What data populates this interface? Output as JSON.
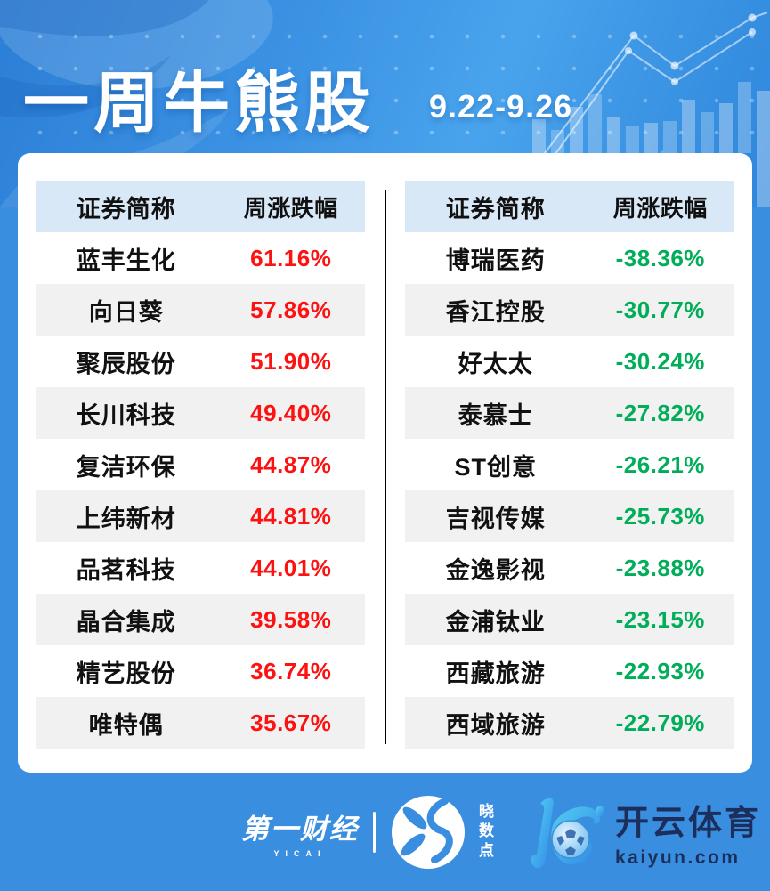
{
  "banner": {
    "title": "一周牛熊股",
    "date_range": "9.22-9.26"
  },
  "tables": {
    "header": [
      "证券简称",
      "周涨跌幅"
    ],
    "gainers": [
      {
        "name": "蓝丰生化",
        "change": "61.16%"
      },
      {
        "name": "向日葵",
        "change": "57.86%"
      },
      {
        "name": "聚辰股份",
        "change": "51.90%"
      },
      {
        "name": "长川科技",
        "change": "49.40%"
      },
      {
        "name": "复洁环保",
        "change": "44.87%"
      },
      {
        "name": "上纬新材",
        "change": "44.81%"
      },
      {
        "name": "品茗科技",
        "change": "44.01%"
      },
      {
        "name": "晶合集成",
        "change": "39.58%"
      },
      {
        "name": "精艺股份",
        "change": "36.74%"
      },
      {
        "name": "唯特偶",
        "change": "35.67%"
      }
    ],
    "losers": [
      {
        "name": "博瑞医药",
        "change": "-38.36%"
      },
      {
        "name": "香江控股",
        "change": "-30.77%"
      },
      {
        "name": "好太太",
        "change": "-30.24%"
      },
      {
        "name": "泰慕士",
        "change": "-27.82%"
      },
      {
        "name": "ST创意",
        "change": "-26.21%"
      },
      {
        "name": "吉视传媒",
        "change": "-25.73%"
      },
      {
        "name": "金逸影视",
        "change": "-23.88%"
      },
      {
        "name": "金浦钛业",
        "change": "-23.15%"
      },
      {
        "name": "西藏旅游",
        "change": "-22.93%"
      },
      {
        "name": "西域旅游",
        "change": "-22.79%"
      }
    ]
  },
  "chart_data": [
    {
      "type": "table",
      "title": "",
      "panel": "left-gainers",
      "columns": [
        "证券简称",
        "周涨跌幅"
      ],
      "rows": [
        [
          "蓝丰生化",
          "61.16%"
        ],
        [
          "向日葵",
          "57.86%"
        ],
        [
          "聚辰股份",
          "51.90%"
        ],
        [
          "长川科技",
          "49.40%"
        ],
        [
          "复洁环保",
          "44.87%"
        ],
        [
          "上纬新材",
          "44.81%"
        ],
        [
          "品茗科技",
          "44.01%"
        ],
        [
          "晶合集成",
          "39.58%"
        ],
        [
          "精艺股份",
          "36.74%"
        ],
        [
          "唯特偶",
          "35.67%"
        ]
      ]
    },
    {
      "type": "table",
      "title": "",
      "panel": "right-losers",
      "columns": [
        "证券简称",
        "周涨跌幅"
      ],
      "rows": [
        [
          "博瑞医药",
          "-38.36%"
        ],
        [
          "香江控股",
          "-30.77%"
        ],
        [
          "好太太",
          "-30.24%"
        ],
        [
          "泰慕士",
          "-27.82%"
        ],
        [
          "ST创意",
          "-26.21%"
        ],
        [
          "吉视传媒",
          "-25.73%"
        ],
        [
          "金逸影视",
          "-23.88%"
        ],
        [
          "金浦钛业",
          "-23.15%"
        ],
        [
          "西藏旅游",
          "-22.93%"
        ],
        [
          "西域旅游",
          "-22.79%"
        ]
      ]
    }
  ],
  "footer": {
    "yicai_name": "第一财经",
    "yicai_sub": "YICAI",
    "xsd_name": "晓数点",
    "kaiyun_name": "开云体育",
    "kaiyun_domain": "kaiyun.com"
  },
  "colors": {
    "frame_blue": "#3a8ee0",
    "header_bg": "#d9e8f6",
    "alt_row": "#f1f1f1",
    "up_red": "#fe1111",
    "down_green": "#00ad59",
    "kaiyun_navy": "#1c2f5c"
  }
}
